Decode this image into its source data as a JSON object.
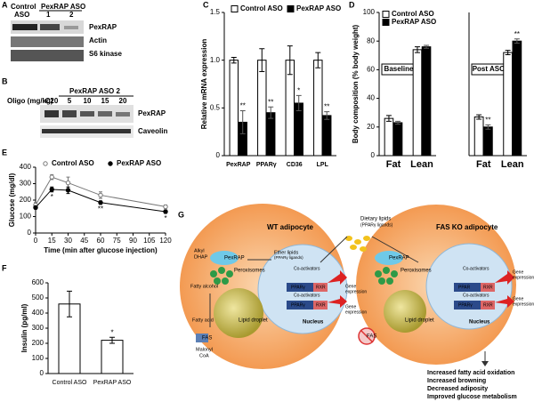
{
  "panel_letters": [
    "A",
    "B",
    "C",
    "D",
    "E",
    "F",
    "G"
  ],
  "blots": {
    "a": {
      "control": "Control",
      "aso": "ASO",
      "pexrap_aso": "PexRAP ASO",
      "lane1": "1",
      "lane2": "2",
      "rows": [
        "PexRAP",
        "Actin",
        "S6 kinase"
      ]
    },
    "b": {
      "header": "PexRAP ASO 2",
      "oligo": "Oligo (mg/kg)",
      "lanes": [
        "C20",
        "5",
        "10",
        "15",
        "20"
      ],
      "rows": [
        "PexRAP",
        "Caveolin"
      ]
    }
  },
  "chart_data": [
    {
      "type": "bar",
      "ylabel": "Relative mRNA expression",
      "categories": [
        "PexRAP",
        "PPARγ",
        "CD36",
        "LPL"
      ],
      "series": [
        {
          "name": "Control ASO",
          "color": "#ffffff",
          "values": [
            1.0,
            1.0,
            1.0,
            1.0
          ],
          "errors": [
            0.03,
            0.12,
            0.15,
            0.08
          ]
        },
        {
          "name": "PexRAP ASO",
          "color": "#000000",
          "values": [
            0.35,
            0.45,
            0.55,
            0.42
          ],
          "errors": [
            0.12,
            0.06,
            0.08,
            0.04
          ],
          "sig": [
            "**",
            "**",
            "*",
            "**"
          ]
        }
      ],
      "ylim": [
        0,
        1.5
      ],
      "yticks": [
        0,
        0.5,
        {
          "value": 1,
          "label": "1.0"
        },
        1.5
      ],
      "legend": "top"
    },
    {
      "type": "bar",
      "title": "Baseline",
      "ylabel": "Body composition (% body weight)",
      "categories": [
        "Fat",
        "Lean"
      ],
      "series": [
        {
          "name": "Control ASO",
          "color": "#ffffff",
          "values": [
            26,
            74
          ],
          "errors": [
            2,
            2
          ]
        },
        {
          "name": "PexRAP ASO",
          "color": "#000000",
          "values": [
            23,
            76
          ],
          "errors": [
            1,
            1
          ]
        }
      ],
      "ylim": [
        0,
        100
      ],
      "yticks": [
        0,
        20,
        40,
        60,
        80,
        100
      ],
      "legend": "upper left"
    },
    {
      "type": "bar",
      "title": "Post ASO",
      "categories": [
        "Fat",
        "Lean"
      ],
      "series": [
        {
          "color": "#ffffff",
          "values": [
            27,
            72
          ],
          "errors": [
            1.5,
            1.5
          ]
        },
        {
          "color": "#000000",
          "values": [
            20,
            80
          ],
          "errors": [
            1.5,
            1.5
          ],
          "sig": [
            "**",
            "**"
          ]
        }
      ],
      "ylim": [
        0,
        100
      ]
    },
    {
      "type": "line",
      "xlabel": "Time (min after glucose injection)",
      "ylabel": "Glucose (mg/dl)",
      "x": [
        0,
        15,
        30,
        60,
        120
      ],
      "series": [
        {
          "name": "Control ASO",
          "color": "#777777",
          "values": [
            170,
            340,
            305,
            230,
            160
          ],
          "errors": [
            15,
            15,
            35,
            20,
            10
          ]
        },
        {
          "name": "PexRAP ASO",
          "color": "#000000",
          "values": [
            155,
            265,
            260,
            185,
            130
          ],
          "errors": [
            10,
            15,
            20,
            10,
            10
          ],
          "sig": [
            null,
            "*",
            null,
            "**",
            "*"
          ]
        }
      ],
      "xlim": [
        0,
        120
      ],
      "xticks": [
        0,
        15,
        30,
        45,
        60,
        75,
        90,
        105,
        120
      ],
      "ylim": [
        0,
        400
      ],
      "yticks": [
        0,
        100,
        200,
        300,
        400
      ],
      "legend": "top"
    },
    {
      "type": "bar",
      "ylabel": "Insulin (pg/ml)",
      "categories": [
        "Control ASO",
        "PexRAP ASO"
      ],
      "series": [
        {
          "color": "#ffffff",
          "values": [
            460,
            220
          ],
          "errors": [
            85,
            20
          ],
          "sig": [
            null,
            "*"
          ]
        }
      ],
      "ylim": [
        0,
        600
      ],
      "yticks": [
        0,
        100,
        200,
        300,
        400,
        500,
        600
      ]
    }
  ],
  "diagram": {
    "wt_title": "WT adipocyte",
    "ko_title": "FAS KO adipocyte",
    "dietary": "Dietary lipids",
    "dietary_sub": "(PPARγ ligands)",
    "wt": {
      "alkyl": "Alkyl",
      "dhap": "DHAP",
      "pexrap": "PexRAP",
      "ether": "Ether lipids",
      "ether_sub": "(PPARγ ligands)",
      "peroxisomes": "Peroxisomes",
      "fatty_alcohol": "Fatty alcohol",
      "fatty_acid": "Fatty acid",
      "fas": "FAS",
      "malonyl": "Malonyl",
      "coa": "CoA",
      "droplet": "Lipid droplet",
      "coact1": "Co-activators",
      "coact2": "Co-activators",
      "ppar1": "PPARγ",
      "rxr1": "RXR",
      "ppar2": "PPARγ",
      "rxr2": "RXR",
      "gene1": "Gene",
      "expr1": "expression",
      "gene2": "Gene",
      "expr2": "expression",
      "nucleus": "Nucleus"
    },
    "ko": {
      "pexrap": "PexRAP",
      "peroxisomes": "Peroxisomes",
      "fas": "FAS",
      "droplet": "Lipid droplet",
      "coact1": "Co-activators",
      "coact2": "Co-activators",
      "ppar1": "PPAR",
      "rxr1": "RXR",
      "ppar2": "PPARγ",
      "rxr2": "RXR",
      "gene1": "Gene",
      "expr1": "expression",
      "gene2": "Gene",
      "expr2": "expression",
      "nucleus": "Nucleus"
    },
    "outcomes": [
      "Increased fatty acid oxidation",
      "Increased browning",
      "Decreased adiposity",
      "Improved glucose metabolism"
    ]
  }
}
